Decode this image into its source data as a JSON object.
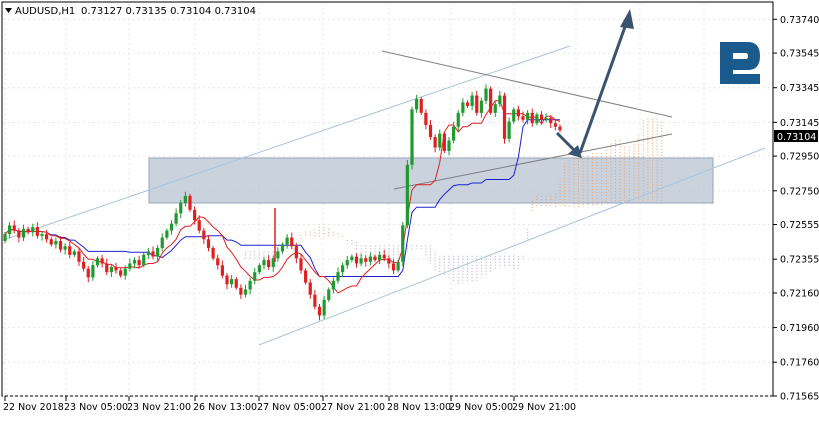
{
  "header": {
    "symbol_tf": "AUDUSD,H1",
    "ohlc": "0.73127 0.73135 0.73104 0.73104"
  },
  "price_axis": {
    "labels": [
      "0.73740",
      "0.73545",
      "0.73345",
      "0.73145",
      "0.72950",
      "0.72750",
      "0.72555",
      "0.72355",
      "0.72160",
      "0.71960",
      "0.71760",
      "0.71565"
    ],
    "current_price": "0.73104"
  },
  "time_axis": {
    "labels": [
      "22 Nov 2018",
      "23 Nov 05:00",
      "23 Nov 21:00",
      "26 Nov 13:00",
      "27 Nov 05:00",
      "27 Nov 21:00",
      "28 Nov 13:00",
      "29 Nov 05:00",
      "29 Nov 21:00"
    ]
  },
  "logo": {
    "icon": "r-brand-logo",
    "color": "#1b5a8c"
  },
  "colors": {
    "bull": "#1f9a2e",
    "bear": "#e02020",
    "kijun": "#2020d0",
    "tenkan": "#e02020",
    "cloud": "#f0a060",
    "zone": "#c0cad8",
    "channel": "#a8c4dc",
    "triangle": "#808080",
    "arrow": "#3a5470"
  },
  "chart_data": {
    "type": "candlestick",
    "title": "",
    "symbol": "AUDUSD",
    "timeframe": "H1",
    "ylim": [
      0.71565,
      0.7384
    ],
    "y_ticks": [
      0.7374,
      0.73545,
      0.73345,
      0.73145,
      0.7295,
      0.7275,
      0.72555,
      0.72355,
      0.7216,
      0.7196,
      0.7176,
      0.71565
    ],
    "last_price": 0.73104,
    "close_series": [
      0.725,
      0.7255,
      0.7252,
      0.7248,
      0.7253,
      0.7251,
      0.7254,
      0.7249,
      0.725,
      0.7247,
      0.7244,
      0.7246,
      0.7241,
      0.7243,
      0.7238,
      0.724,
      0.7234,
      0.723,
      0.7225,
      0.7232,
      0.7236,
      0.7233,
      0.7228,
      0.7231,
      0.7229,
      0.7226,
      0.723,
      0.7233,
      0.7235,
      0.7232,
      0.7238,
      0.724,
      0.7237,
      0.7242,
      0.7248,
      0.7252,
      0.7256,
      0.7262,
      0.7268,
      0.7272,
      0.7264,
      0.7258,
      0.7252,
      0.7247,
      0.7242,
      0.7236,
      0.7232,
      0.7226,
      0.7221,
      0.7224,
      0.7219,
      0.7215,
      0.7218,
      0.7223,
      0.7228,
      0.7232,
      0.7235,
      0.7231,
      0.7236,
      0.724,
      0.7244,
      0.7248,
      0.7243,
      0.7236,
      0.7229,
      0.7222,
      0.7215,
      0.7208,
      0.7203,
      0.7212,
      0.7218,
      0.7223,
      0.7228,
      0.7232,
      0.7235,
      0.7237,
      0.7233,
      0.7236,
      0.7234,
      0.7237,
      0.7235,
      0.7238,
      0.7236,
      0.7233,
      0.7229,
      0.7234,
      0.7255,
      0.729,
      0.7322,
      0.7328,
      0.732,
      0.7313,
      0.7306,
      0.73,
      0.7308,
      0.7298,
      0.7304,
      0.7312,
      0.732,
      0.7326,
      0.7324,
      0.733,
      0.732,
      0.7327,
      0.7334,
      0.732,
      0.7325,
      0.733,
      0.7305,
      0.7315,
      0.7322,
      0.7318,
      0.7316,
      0.732,
      0.7314,
      0.7319,
      0.7316,
      0.7317,
      0.7314,
      0.7312,
      0.731
    ],
    "annotations": [
      "price channel (upward)",
      "triangle",
      "resistance-support zone 0.72750-0.72950",
      "forecast arrow up"
    ]
  }
}
